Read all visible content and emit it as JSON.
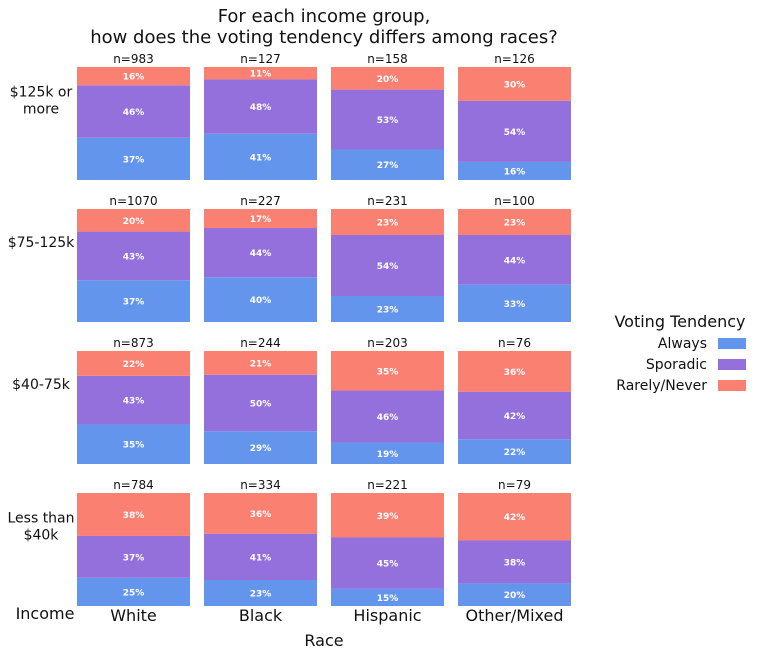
{
  "chart_data": {
    "type": "bar",
    "stacked": true,
    "title": "For each income group,\nhow does the voting tendency differs among races?",
    "xlabel": "Race",
    "ylabel": "Income",
    "columns": [
      "White",
      "Black",
      "Hispanic",
      "Other/Mixed"
    ],
    "rows": [
      {
        "label": "$125k or more",
        "label_lines": [
          "$125k or",
          "more"
        ],
        "n": [
          "n=983",
          "n=127",
          "n=158",
          "n=126"
        ],
        "always": [
          37,
          41,
          27,
          16
        ],
        "sporadic": [
          46,
          48,
          53,
          54
        ],
        "rarely": [
          16,
          11,
          20,
          30
        ]
      },
      {
        "label": "$75-125k",
        "label_lines": [
          "$75-125k"
        ],
        "n": [
          "n=1070",
          "n=227",
          "n=231",
          "n=100"
        ],
        "always": [
          37,
          40,
          23,
          33
        ],
        "sporadic": [
          43,
          44,
          54,
          44
        ],
        "rarely": [
          20,
          17,
          23,
          23
        ]
      },
      {
        "label": "$40-75k",
        "label_lines": [
          "$40-75k"
        ],
        "n": [
          "n=873",
          "n=244",
          "n=203",
          "n=76"
        ],
        "always": [
          35,
          29,
          19,
          22
        ],
        "sporadic": [
          43,
          50,
          46,
          42
        ],
        "rarely": [
          22,
          21,
          35,
          36
        ]
      },
      {
        "label": "Less than $40k",
        "label_lines": [
          "Less than",
          "$40k"
        ],
        "n": [
          "n=784",
          "n=334",
          "n=221",
          "n=79"
        ],
        "always": [
          25,
          23,
          15,
          20
        ],
        "sporadic": [
          37,
          41,
          45,
          38
        ],
        "rarely": [
          38,
          36,
          39,
          42
        ]
      }
    ],
    "legend": {
      "title": "Voting Tendency",
      "position": "right",
      "items": [
        {
          "key": "always",
          "label": "Always",
          "color": "#6495ED"
        },
        {
          "key": "sporadic",
          "label": "Sporadic",
          "color": "#9370DB"
        },
        {
          "key": "rarely",
          "label": "Rarely/Never",
          "color": "#FA8072"
        }
      ]
    },
    "value_suffix": "%",
    "grid": false
  }
}
